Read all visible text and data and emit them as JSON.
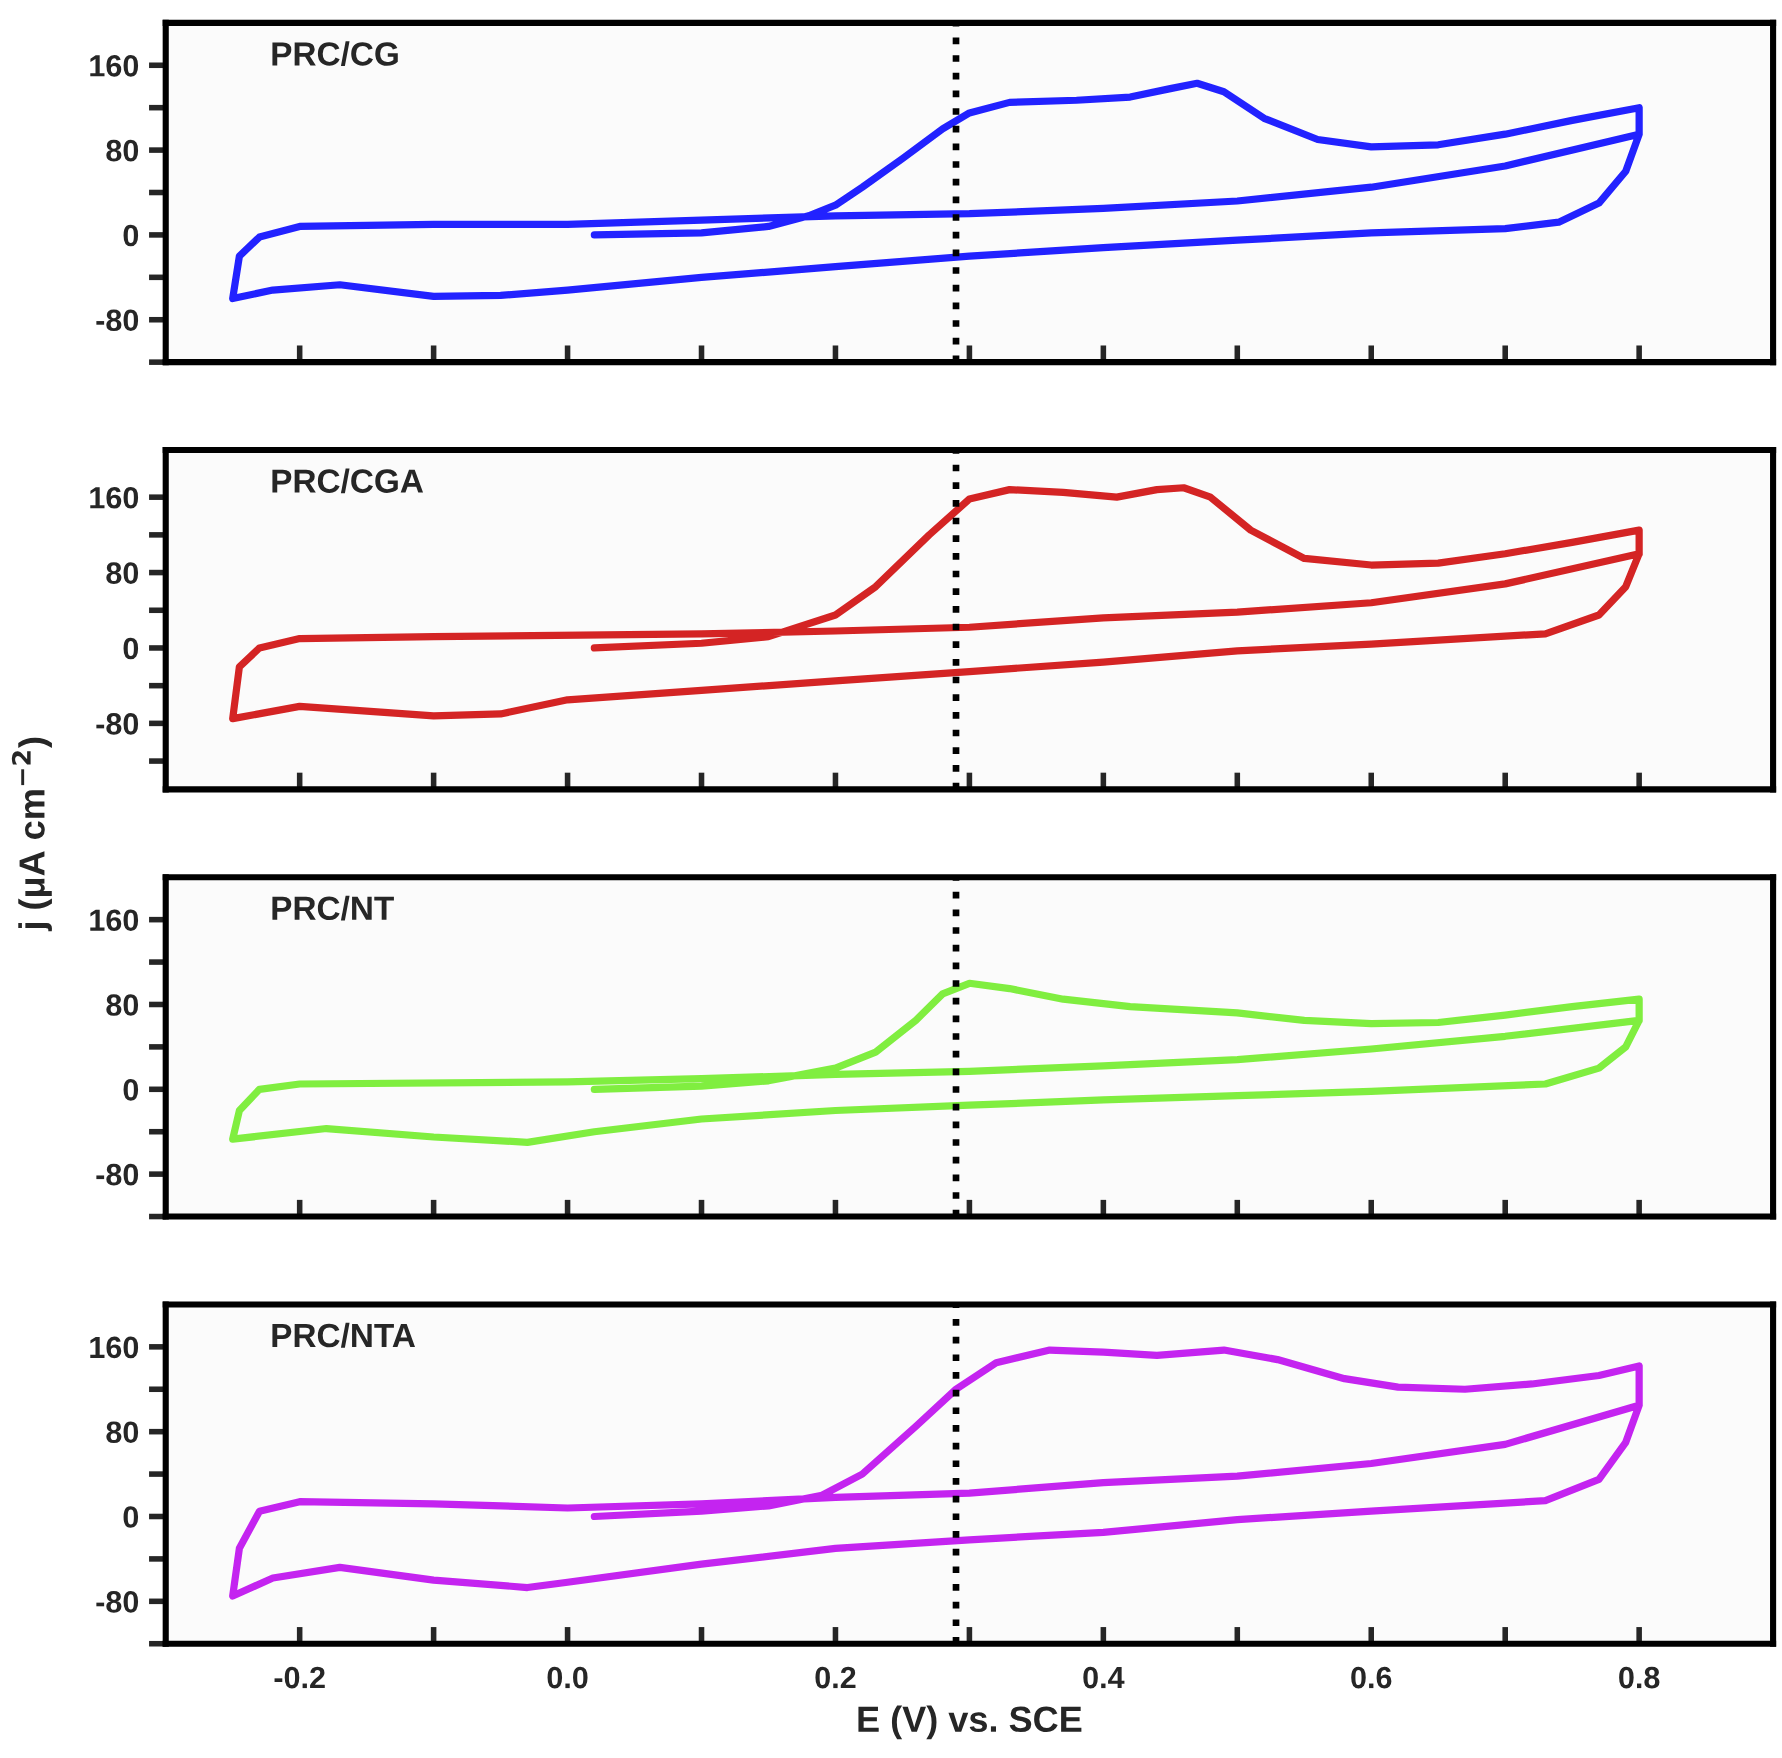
{
  "chart_data": [
    {
      "type": "line",
      "xlim": [
        -0.3,
        0.9
      ],
      "ylim": [
        -120,
        200
      ],
      "tick_labels": "y",
      "grid": false,
      "legend": false,
      "marker": "none",
      "line_style": "solid",
      "xticks": [
        {
          "value": -0.2,
          "label": null
        },
        {
          "value": -0.1,
          "label": null
        },
        {
          "value": 0.0,
          "label": null
        },
        {
          "value": 0.1,
          "label": null
        },
        {
          "value": 0.2,
          "label": null
        },
        {
          "value": 0.3,
          "label": null
        },
        {
          "value": 0.4,
          "label": null
        },
        {
          "value": 0.5,
          "label": null
        },
        {
          "value": 0.6,
          "label": null
        },
        {
          "value": 0.7,
          "label": null
        },
        {
          "value": 0.8,
          "label": null
        }
      ],
      "yticks": [
        {
          "value": -120,
          "label": null
        },
        -80,
        {
          "value": -40,
          "label": null
        },
        0,
        {
          "value": 40,
          "label": null
        },
        80,
        {
          "value": 120,
          "label": null
        },
        160
      ],
      "ref_lines": [
        {
          "axis": "x",
          "value": 0.29,
          "line_style": "dotted",
          "color": "#000000"
        }
      ],
      "series": [
        {
          "name": "PRC/CG",
          "color": "#2222ff",
          "x": [
            0.02,
            0.1,
            0.15,
            0.18,
            0.2,
            0.22,
            0.25,
            0.28,
            0.3,
            0.33,
            0.38,
            0.42,
            0.45,
            0.47,
            0.49,
            0.52,
            0.56,
            0.6,
            0.65,
            0.7,
            0.75,
            0.8,
            0.8,
            0.79,
            0.77,
            0.74,
            0.7,
            0.6,
            0.5,
            0.4,
            0.3,
            0.2,
            0.1,
            0.0,
            -0.05,
            -0.1,
            -0.17,
            -0.22,
            -0.25,
            -0.245,
            -0.23,
            -0.2,
            -0.1,
            0.0,
            0.1,
            0.2,
            0.3,
            0.4,
            0.5,
            0.6,
            0.7,
            0.8
          ],
          "values": [
            0,
            2,
            8,
            18,
            28,
            45,
            72,
            100,
            115,
            125,
            127,
            130,
            138,
            143,
            135,
            110,
            90,
            83,
            85,
            95,
            108,
            120,
            95,
            60,
            30,
            12,
            6,
            2,
            -5,
            -12,
            -20,
            -30,
            -40,
            -52,
            -57,
            -58,
            -47,
            -52,
            -60,
            -20,
            -2,
            8,
            10,
            10,
            14,
            18,
            20,
            25,
            32,
            45,
            65,
            95
          ]
        }
      ]
    },
    {
      "type": "line",
      "xlim": [
        -0.3,
        0.9
      ],
      "ylim": [
        -150,
        210
      ],
      "tick_labels": "y",
      "grid": false,
      "legend": false,
      "marker": "none",
      "line_style": "solid",
      "xticks": [
        {
          "value": -0.2,
          "label": null
        },
        {
          "value": -0.1,
          "label": null
        },
        {
          "value": 0.0,
          "label": null
        },
        {
          "value": 0.1,
          "label": null
        },
        {
          "value": 0.2,
          "label": null
        },
        {
          "value": 0.3,
          "label": null
        },
        {
          "value": 0.4,
          "label": null
        },
        {
          "value": 0.5,
          "label": null
        },
        {
          "value": 0.6,
          "label": null
        },
        {
          "value": 0.7,
          "label": null
        },
        {
          "value": 0.8,
          "label": null
        }
      ],
      "yticks": [
        {
          "value": -120,
          "label": null
        },
        -80,
        {
          "value": -40,
          "label": null
        },
        0,
        {
          "value": 40,
          "label": null
        },
        80,
        {
          "value": 120,
          "label": null
        },
        160
      ],
      "ref_lines": [
        {
          "axis": "x",
          "value": 0.29,
          "line_style": "dotted",
          "color": "#000000"
        }
      ],
      "series": [
        {
          "name": "PRC/CGA",
          "color": "#d42424",
          "x": [
            0.02,
            0.1,
            0.15,
            0.2,
            0.23,
            0.27,
            0.3,
            0.33,
            0.37,
            0.41,
            0.44,
            0.46,
            0.48,
            0.51,
            0.55,
            0.6,
            0.65,
            0.7,
            0.75,
            0.8,
            0.8,
            0.79,
            0.77,
            0.73,
            0.6,
            0.5,
            0.4,
            0.3,
            0.2,
            0.1,
            0.0,
            -0.05,
            -0.1,
            -0.2,
            -0.25,
            -0.245,
            -0.23,
            -0.2,
            -0.1,
            0.1,
            0.2,
            0.3,
            0.4,
            0.5,
            0.6,
            0.7,
            0.8
          ],
          "values": [
            0,
            5,
            12,
            35,
            65,
            120,
            158,
            168,
            165,
            160,
            168,
            170,
            160,
            125,
            95,
            88,
            90,
            100,
            112,
            125,
            100,
            65,
            35,
            15,
            4,
            -3,
            -15,
            -25,
            -35,
            -45,
            -55,
            -70,
            -72,
            -62,
            -75,
            -20,
            0,
            10,
            12,
            15,
            18,
            22,
            32,
            38,
            48,
            68,
            100
          ]
        }
      ]
    },
    {
      "type": "line",
      "xlim": [
        -0.3,
        0.9
      ],
      "ylim": [
        -120,
        200
      ],
      "tick_labels": "y",
      "grid": false,
      "legend": false,
      "marker": "none",
      "line_style": "solid",
      "ylabel": "j (μA cm$^{−2}$)",
      "xticks": [
        {
          "value": -0.2,
          "label": null
        },
        {
          "value": -0.1,
          "label": null
        },
        {
          "value": 0.0,
          "label": null
        },
        {
          "value": 0.1,
          "label": null
        },
        {
          "value": 0.2,
          "label": null
        },
        {
          "value": 0.3,
          "label": null
        },
        {
          "value": 0.4,
          "label": null
        },
        {
          "value": 0.5,
          "label": null
        },
        {
          "value": 0.6,
          "label": null
        },
        {
          "value": 0.7,
          "label": null
        },
        {
          "value": 0.8,
          "label": null
        }
      ],
      "yticks": [
        {
          "value": -120,
          "label": null
        },
        -80,
        {
          "value": -40,
          "label": null
        },
        0,
        {
          "value": 40,
          "label": null
        },
        80,
        {
          "value": 120,
          "label": null
        },
        160
      ],
      "ref_lines": [
        {
          "axis": "x",
          "value": 0.29,
          "line_style": "dotted",
          "color": "#000000"
        }
      ],
      "series": [
        {
          "name": "PRC/NT",
          "color": "#80ee40",
          "x": [
            0.02,
            0.1,
            0.15,
            0.2,
            0.23,
            0.26,
            0.28,
            0.3,
            0.33,
            0.37,
            0.42,
            0.5,
            0.55,
            0.6,
            0.65,
            0.7,
            0.75,
            0.8,
            0.8,
            0.79,
            0.77,
            0.73,
            0.6,
            0.5,
            0.4,
            0.3,
            0.2,
            0.1,
            0.02,
            -0.03,
            -0.1,
            -0.18,
            -0.25,
            -0.245,
            -0.23,
            -0.2,
            0.0,
            0.1,
            0.2,
            0.3,
            0.4,
            0.5,
            0.6,
            0.7,
            0.8
          ],
          "values": [
            0,
            3,
            8,
            20,
            35,
            65,
            90,
            100,
            95,
            85,
            78,
            72,
            65,
            62,
            63,
            70,
            78,
            85,
            65,
            40,
            20,
            5,
            -2,
            -6,
            -10,
            -15,
            -20,
            -28,
            -40,
            -50,
            -45,
            -37,
            -47,
            -20,
            0,
            5,
            7,
            10,
            14,
            17,
            22,
            28,
            38,
            50,
            65
          ]
        }
      ]
    },
    {
      "type": "line",
      "xlim": [
        -0.3,
        0.9
      ],
      "ylim": [
        -120,
        200
      ],
      "grid": false,
      "legend": false,
      "marker": "none",
      "line_style": "solid",
      "xlabel": "E (V) vs. SCE",
      "xticks": [
        -0.2,
        {
          "value": -0.1,
          "label": null
        },
        {
          "value": 0.0,
          "label": "0.0"
        },
        {
          "value": 0.1,
          "label": null
        },
        0.2,
        {
          "value": 0.3,
          "label": null
        },
        0.4,
        {
          "value": 0.5,
          "label": null
        },
        0.6,
        {
          "value": 0.7,
          "label": null
        },
        0.8
      ],
      "yticks": [
        {
          "value": -120,
          "label": null
        },
        -80,
        {
          "value": -40,
          "label": null
        },
        0,
        {
          "value": 40,
          "label": null
        },
        80,
        {
          "value": 120,
          "label": null
        },
        160
      ],
      "ref_lines": [
        {
          "axis": "x",
          "value": 0.29,
          "line_style": "dotted",
          "color": "#000000"
        }
      ],
      "series": [
        {
          "name": "PRC/NTA",
          "color": "#c424f0",
          "x": [
            0.02,
            0.1,
            0.15,
            0.19,
            0.22,
            0.26,
            0.29,
            0.32,
            0.36,
            0.4,
            0.44,
            0.49,
            0.53,
            0.58,
            0.62,
            0.67,
            0.72,
            0.77,
            0.8,
            0.8,
            0.79,
            0.77,
            0.73,
            0.6,
            0.5,
            0.4,
            0.3,
            0.2,
            0.1,
            0.0,
            -0.03,
            -0.1,
            -0.17,
            -0.22,
            -0.25,
            -0.245,
            -0.23,
            -0.2,
            -0.1,
            0.0,
            0.1,
            0.2,
            0.3,
            0.4,
            0.5,
            0.6,
            0.7,
            0.8
          ],
          "values": [
            0,
            5,
            10,
            20,
            40,
            85,
            120,
            145,
            157,
            155,
            152,
            157,
            148,
            130,
            122,
            120,
            125,
            133,
            142,
            105,
            70,
            35,
            15,
            5,
            -3,
            -15,
            -22,
            -30,
            -45,
            -62,
            -67,
            -60,
            -48,
            -58,
            -75,
            -30,
            5,
            14,
            12,
            8,
            12,
            18,
            22,
            32,
            38,
            50,
            68,
            105
          ]
        }
      ]
    }
  ]
}
